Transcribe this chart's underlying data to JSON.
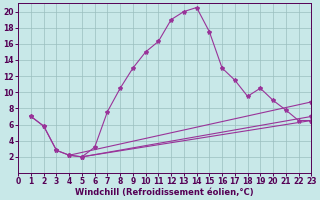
{
  "line_main_x": [
    1,
    2,
    3,
    4,
    5,
    6,
    7,
    8,
    9,
    10,
    11,
    12,
    13,
    14,
    15,
    16,
    17,
    18,
    19,
    20,
    21,
    22,
    23
  ],
  "line_main_y": [
    7.0,
    5.8,
    2.8,
    2.2,
    2.0,
    3.2,
    7.6,
    10.5,
    13.0,
    15.0,
    16.3,
    19.0,
    20.0,
    20.5,
    17.5,
    13.0,
    11.5,
    9.5,
    10.5,
    9.0,
    7.8,
    6.5,
    6.5
  ],
  "line2_x": [
    1,
    2,
    3,
    4,
    5,
    23
  ],
  "line2_y": [
    7.0,
    5.8,
    2.8,
    2.2,
    2.0,
    6.5
  ],
  "line3_x": [
    4,
    23
  ],
  "line3_y": [
    2.2,
    8.8
  ],
  "line4_x": [
    5,
    23
  ],
  "line4_y": [
    2.0,
    7.0
  ],
  "line_color": "#993399",
  "bg_color": "#c8e8e8",
  "grid_color": "#9bbfbf",
  "xlabel": "Windchill (Refroidissement éolien,°C)",
  "xlim": [
    0,
    23
  ],
  "ylim": [
    0,
    21
  ],
  "xticks": [
    0,
    1,
    2,
    3,
    4,
    5,
    6,
    7,
    8,
    9,
    10,
    11,
    12,
    13,
    14,
    15,
    16,
    17,
    18,
    19,
    20,
    21,
    22,
    23
  ],
  "yticks": [
    2,
    4,
    6,
    8,
    10,
    12,
    14,
    16,
    18,
    20
  ],
  "xlabel_fontsize": 6,
  "tick_fontsize": 5.5
}
